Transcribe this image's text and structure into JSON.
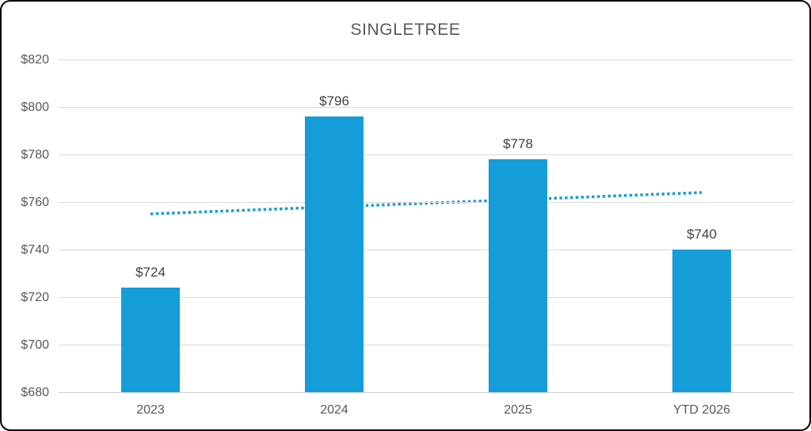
{
  "chart_data": {
    "type": "bar",
    "title": "SINGLETREE",
    "categories": [
      "2023",
      "2024",
      "2025",
      "YTD 2026"
    ],
    "values": [
      724,
      796,
      778,
      740
    ],
    "value_labels": [
      "$724",
      "$796",
      "$778",
      "$740"
    ],
    "xlabel": "",
    "ylabel": "",
    "ylim": [
      680,
      820
    ],
    "y_tick_values": [
      820,
      800,
      780,
      760,
      740,
      720,
      700,
      680
    ],
    "y_tick_labels": [
      "$820",
      "$800",
      "$780",
      "$760",
      "$740",
      "$720",
      "$700",
      "$680"
    ],
    "grid": true,
    "legend": false,
    "trendline": {
      "style": "dotted",
      "start_value": 755,
      "end_value": 764
    },
    "colors": {
      "bar": "#149dd9",
      "trendline": "#149dd9",
      "gridline": "#d9d9d9",
      "axis_line": "#d0d0d0",
      "title_text": "#595959",
      "tick_text": "#595959",
      "value_label_text": "#3f3f3f",
      "frame_border": "#000000",
      "background": "#ffffff"
    }
  }
}
